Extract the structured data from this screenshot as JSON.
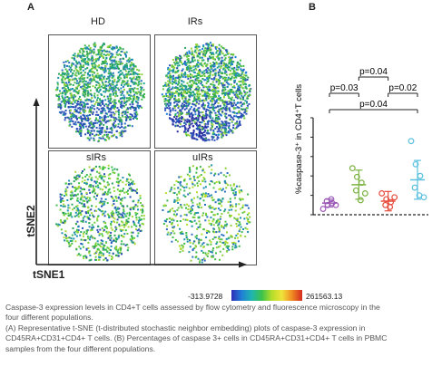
{
  "panel_a": {
    "letter": "A",
    "plots": [
      {
        "title": "HD",
        "title_pos": "top"
      },
      {
        "title": "IRs",
        "title_pos": "top"
      },
      {
        "title": "sIRs",
        "title_pos": "inside"
      },
      {
        "title": "uIRs",
        "title_pos": "inside"
      }
    ],
    "y_axis_label": "tSNE2",
    "x_axis_label": "tSNE1",
    "color_scale": {
      "min_label": "-313.9728",
      "max_label": "261563.13",
      "colors": [
        "#2d2db8",
        "#1f7fd6",
        "#1fb5b0",
        "#3cc24a",
        "#b5de2a",
        "#f0e23a",
        "#f08a22",
        "#d42a20"
      ]
    }
  },
  "panel_b": {
    "letter": "B",
    "chart_data": {
      "type": "scatter",
      "ylabel": "%caspase-3⁺ in CD4⁺T cells",
      "xlabel": "",
      "ylim": [
        0,
        1.0
      ],
      "yticks": [
        0.0,
        0.2,
        0.4,
        0.6,
        0.8,
        1.0
      ],
      "groups": [
        {
          "color": "#9b59b6",
          "mean": 0.12,
          "sd": 0.04,
          "values": [
            0.06,
            0.1,
            0.12,
            0.14,
            0.16,
            0.1
          ]
        },
        {
          "color": "#7cb342",
          "mean": 0.31,
          "sd": 0.15,
          "values": [
            0.48,
            0.39,
            0.33,
            0.25,
            0.15,
            0.22
          ]
        },
        {
          "color": "#e74c3c",
          "mean": 0.14,
          "sd": 0.1,
          "values": [
            0.22,
            0.16,
            0.13,
            0.1,
            0.08,
            0.18
          ]
        },
        {
          "color": "#5bc0de",
          "mean": 0.36,
          "sd": 0.2,
          "values": [
            0.76,
            0.52,
            0.4,
            0.28,
            0.2,
            0.18
          ]
        }
      ],
      "comparisons": [
        {
          "label": "p=0.04",
          "from": 1,
          "to": 2
        },
        {
          "label": "p=0.03",
          "from": 0,
          "to": 1
        },
        {
          "label": "p=0.02",
          "from": 2,
          "to": 3
        },
        {
          "label": "p=0.04",
          "from": 0,
          "to": 3
        }
      ]
    }
  },
  "caption": {
    "lines": [
      "Caspase-3 expression levels in CD4+T cells assessed by flow cytometry and fluorescence microscopy in the",
      "four different populations.",
      "(A) Representative t-SNE (t-distributed stochastic neighbor embedding) plots of caspase-3 expression in",
      "CD45RA+CD31+CD4+ T cells. (B) Percentages of caspase 3+ cells in CD45RA+CD31+CD4+ T cells in PBMC",
      "samples from the four different populations."
    ]
  }
}
